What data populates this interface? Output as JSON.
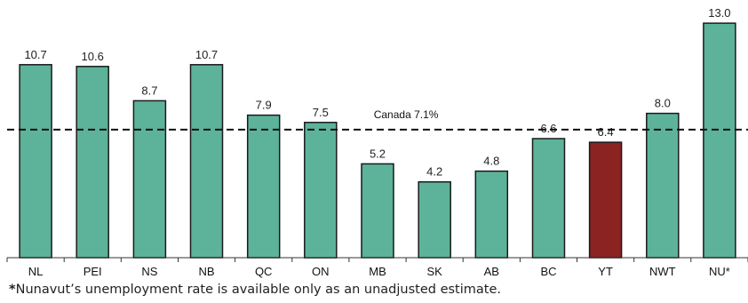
{
  "chart_data": {
    "type": "bar",
    "categories": [
      "NL",
      "PEI",
      "NS",
      "NB",
      "QC",
      "ON",
      "MB",
      "SK",
      "AB",
      "BC",
      "YT",
      "NWT",
      "NU*"
    ],
    "values": [
      10.7,
      10.6,
      8.7,
      10.7,
      7.9,
      7.5,
      5.2,
      4.2,
      4.8,
      6.6,
      6.4,
      8.0,
      13.0
    ],
    "value_labels": [
      "10.7",
      "10.6",
      "8.7",
      "10.7",
      "7.9",
      "7.5",
      "5.2",
      "4.2",
      "4.8",
      "6.6",
      "6.4",
      "8.0",
      "13.0"
    ],
    "highlight_category": "YT",
    "reference_line": {
      "label": "Canada 7.1%",
      "value": 7.1,
      "style": "dashed"
    },
    "ylim": [
      0,
      13.5
    ],
    "grid": false,
    "colors": {
      "bar": "#5db39a",
      "highlight": "#8b2323",
      "bar_border": "#1a1a1a",
      "reference": "#111111"
    }
  },
  "footnote": {
    "star": "*",
    "text": "Nunavut’s unemployment rate is available only as an unadjusted estimate."
  }
}
